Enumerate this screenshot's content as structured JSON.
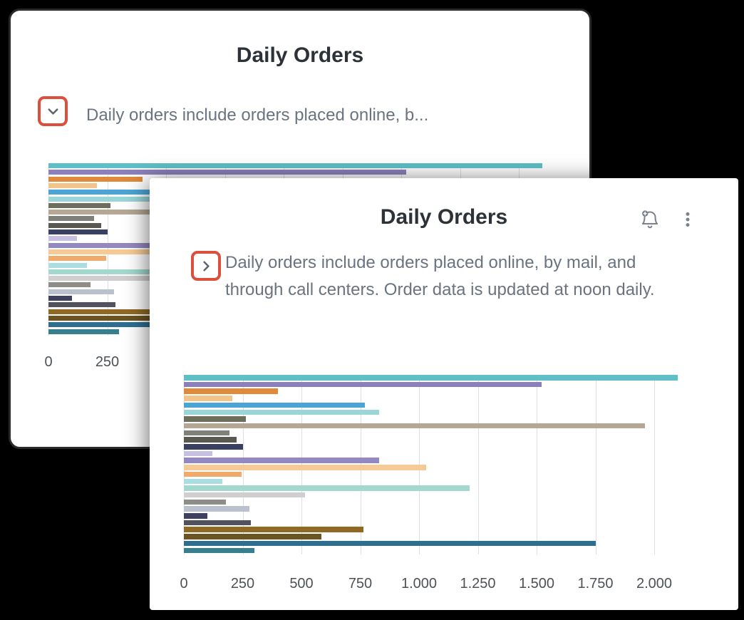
{
  "colors": {
    "page_bg": "#000000",
    "card_bg": "#ffffff",
    "highlight": "#db4f3c",
    "icon": "#7b828c",
    "chevron": "#5d646e",
    "title": "#2d3138",
    "desc": "#6b7380",
    "axis_label": "#4d5257",
    "gridline": "#dce0e4"
  },
  "back_card": {
    "title": "Daily Orders",
    "description_truncated": "Daily orders include orders placed online, b...",
    "toggle_icon": "chevron-down-icon"
  },
  "front_card": {
    "title": "Daily Orders",
    "description": "Daily orders include orders placed online, by mail, and through call centers. Order data is updated at noon daily.",
    "toggle_icon": "chevron-right-icon",
    "header_icons": [
      "bell-plus-icon",
      "kebab-menu-icon"
    ]
  },
  "chart_data": {
    "type": "bar",
    "orientation": "horizontal",
    "title": "Daily Orders",
    "xlim": [
      0,
      2100
    ],
    "grid": true,
    "x_ticks": [
      0,
      250,
      500,
      750,
      1000,
      1250,
      1500,
      1750,
      2000
    ],
    "x_tick_labels": [
      "0",
      "250",
      "500",
      "750",
      "1.000",
      "1.250",
      "1.500",
      "1.750",
      "2.000"
    ],
    "bars": [
      {
        "value": 2100,
        "color": "#5fbfc6"
      },
      {
        "value": 1520,
        "color": "#8b80b9"
      },
      {
        "value": 400,
        "color": "#df8a3a"
      },
      {
        "value": 205,
        "color": "#f2c38b"
      },
      {
        "value": 770,
        "color": "#4aa5d6"
      },
      {
        "value": 830,
        "color": "#9ad5d8"
      },
      {
        "value": 265,
        "color": "#6e6e5c"
      },
      {
        "value": 1960,
        "color": "#b4a894"
      },
      {
        "value": 195,
        "color": "#80807a"
      },
      {
        "value": 225,
        "color": "#595952"
      },
      {
        "value": 250,
        "color": "#394061"
      },
      {
        "value": 120,
        "color": "#c7c0e0"
      },
      {
        "value": 830,
        "color": "#9488c1"
      },
      {
        "value": 1030,
        "color": "#f6ca96"
      },
      {
        "value": 245,
        "color": "#f0ab6a"
      },
      {
        "value": 165,
        "color": "#aadee3"
      },
      {
        "value": 1215,
        "color": "#a3d8cf"
      },
      {
        "value": 515,
        "color": "#cfcfcf"
      },
      {
        "value": 180,
        "color": "#8e8e88"
      },
      {
        "value": 280,
        "color": "#b9c1cd"
      },
      {
        "value": 100,
        "color": "#3f415f"
      },
      {
        "value": 285,
        "color": "#52525e"
      },
      {
        "value": 765,
        "color": "#906a24"
      },
      {
        "value": 585,
        "color": "#6b5422"
      },
      {
        "value": 1750,
        "color": "#2e6e91"
      },
      {
        "value": 300,
        "color": "#377e8f"
      }
    ]
  }
}
